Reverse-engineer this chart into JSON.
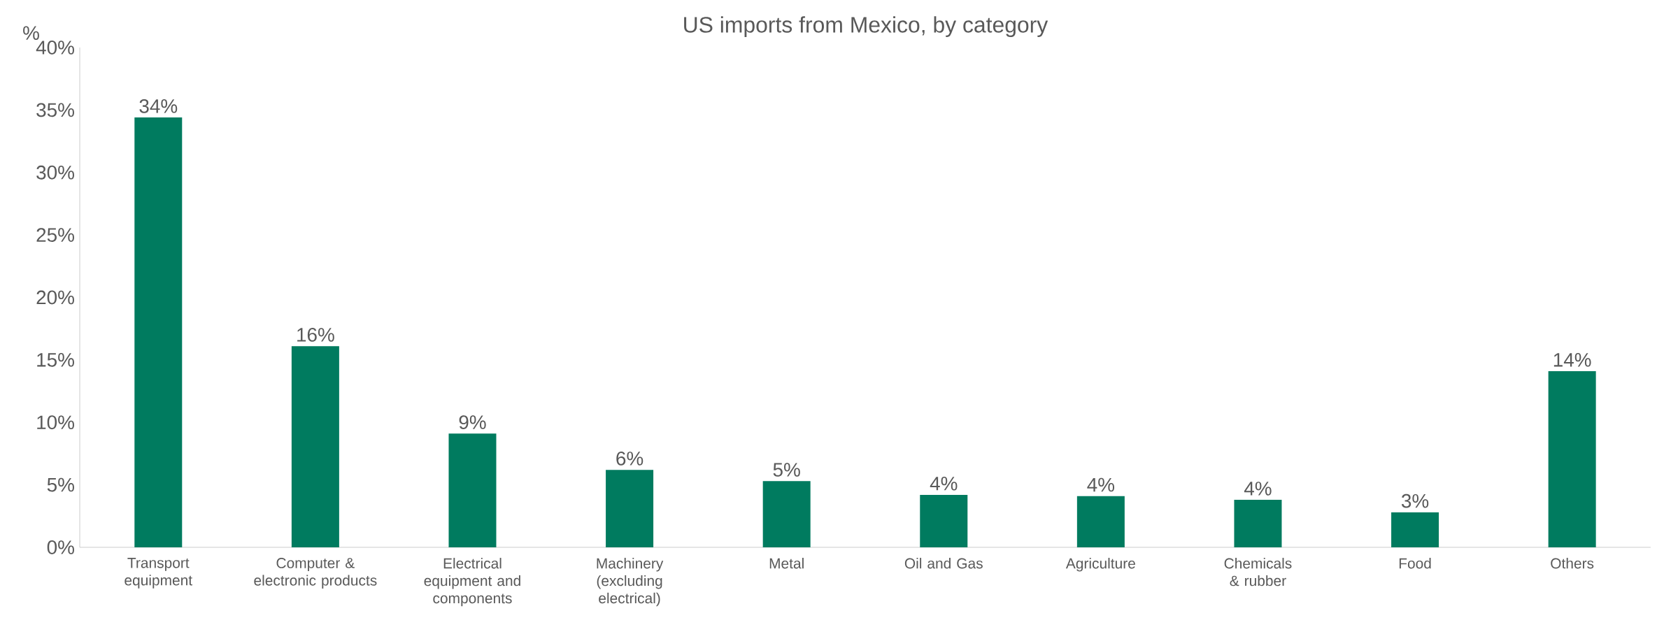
{
  "chart_data": {
    "type": "bar",
    "title": "US imports from Mexico, by category",
    "ylabel": "%",
    "categories": [
      "Transport equipment",
      "Computer & electronic products",
      "Electrical equipment and components",
      "Machinery (excluding electrical)",
      "Metal",
      "Oil and Gas",
      "Agriculture",
      "Chemicals & rubber",
      "Food",
      "Others"
    ],
    "values": [
      34.4,
      16.1,
      9.1,
      6.2,
      5.3,
      4.2,
      4.1,
      3.8,
      2.8,
      14.1
    ],
    "value_labels": [
      "34%",
      "16%",
      "9%",
      "6%",
      "5%",
      "4%",
      "4%",
      "4%",
      "3%",
      "14%"
    ],
    "color": "#007b5f",
    "ylim": [
      0,
      40
    ],
    "yticks": [
      {
        "value": 0,
        "label": "0%"
      },
      {
        "value": 5,
        "label": "5%"
      },
      {
        "value": 10,
        "label": "10%"
      },
      {
        "value": 15,
        "label": "15%"
      },
      {
        "value": 20,
        "label": "20%"
      },
      {
        "value": 25,
        "label": "25%"
      },
      {
        "value": 30,
        "label": "30%"
      },
      {
        "value": 35,
        "label": "35%"
      },
      {
        "value": 40,
        "label": "40%"
      }
    ]
  }
}
